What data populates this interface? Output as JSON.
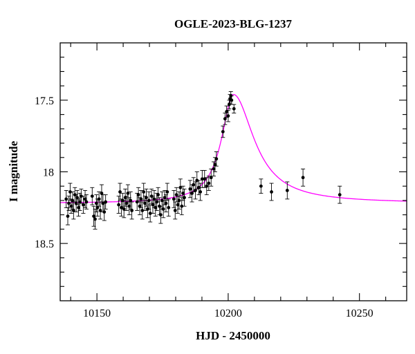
{
  "chart_data": {
    "type": "scatter",
    "title": "OGLE-2023-BLG-1237",
    "xlabel": "HJD - 2450000",
    "ylabel": "I magnitude",
    "xlim": [
      10136,
      10268
    ],
    "ylim": [
      18.9,
      17.1
    ],
    "y_inverted": true,
    "x_major_ticks": [
      10150,
      10200,
      10250
    ],
    "x_tick_labels": [
      "10150",
      "10200",
      "10250"
    ],
    "y_major_ticks": [
      17.5,
      18.0,
      18.5
    ],
    "y_tick_labels": [
      "17.5",
      "18",
      "18.5"
    ],
    "grid": false,
    "colors": {
      "points": "#000000",
      "model": "#ff00ff",
      "frame": "#000000"
    },
    "model": {
      "name": "microlensing model",
      "baseline_mag": 18.22,
      "peak_mag": 17.46,
      "t0": 10202,
      "rise_width": 5.5,
      "decline_width": 9.5
    },
    "series": [
      {
        "values": [
          {
            "x": 10138.3,
            "y": 18.19,
            "err": 0.06
          },
          {
            "x": 10138.9,
            "y": 18.31,
            "err": 0.06
          },
          {
            "x": 10139.3,
            "y": 18.22,
            "err": 0.05
          },
          {
            "x": 10139.8,
            "y": 18.14,
            "err": 0.06
          },
          {
            "x": 10140.2,
            "y": 18.24,
            "err": 0.05
          },
          {
            "x": 10140.7,
            "y": 18.2,
            "err": 0.06
          },
          {
            "x": 10141.1,
            "y": 18.27,
            "err": 0.06
          },
          {
            "x": 10141.6,
            "y": 18.16,
            "err": 0.05
          },
          {
            "x": 10142.1,
            "y": 18.22,
            "err": 0.06
          },
          {
            "x": 10142.5,
            "y": 18.18,
            "err": 0.05
          },
          {
            "x": 10143.0,
            "y": 18.25,
            "err": 0.06
          },
          {
            "x": 10143.5,
            "y": 18.21,
            "err": 0.06
          },
          {
            "x": 10144.0,
            "y": 18.17,
            "err": 0.05
          },
          {
            "x": 10144.8,
            "y": 18.23,
            "err": 0.06
          },
          {
            "x": 10145.5,
            "y": 18.19,
            "err": 0.06
          },
          {
            "x": 10146.0,
            "y": 18.21,
            "err": 0.05
          },
          {
            "x": 10148.2,
            "y": 18.17,
            "err": 0.06
          },
          {
            "x": 10148.8,
            "y": 18.31,
            "err": 0.07
          },
          {
            "x": 10149.3,
            "y": 18.33,
            "err": 0.07
          },
          {
            "x": 10149.8,
            "y": 18.22,
            "err": 0.06
          },
          {
            "x": 10150.2,
            "y": 18.25,
            "err": 0.06
          },
          {
            "x": 10150.8,
            "y": 18.19,
            "err": 0.05
          },
          {
            "x": 10151.3,
            "y": 18.27,
            "err": 0.06
          },
          {
            "x": 10151.8,
            "y": 18.15,
            "err": 0.06
          },
          {
            "x": 10152.3,
            "y": 18.22,
            "err": 0.06
          },
          {
            "x": 10152.8,
            "y": 18.28,
            "err": 0.06
          },
          {
            "x": 10153.3,
            "y": 18.21,
            "err": 0.05
          },
          {
            "x": 10158.3,
            "y": 18.23,
            "err": 0.06
          },
          {
            "x": 10158.8,
            "y": 18.14,
            "err": 0.06
          },
          {
            "x": 10159.3,
            "y": 18.25,
            "err": 0.06
          },
          {
            "x": 10159.8,
            "y": 18.2,
            "err": 0.05
          },
          {
            "x": 10160.3,
            "y": 18.26,
            "err": 0.06
          },
          {
            "x": 10160.8,
            "y": 18.18,
            "err": 0.06
          },
          {
            "x": 10161.3,
            "y": 18.22,
            "err": 0.05
          },
          {
            "x": 10161.8,
            "y": 18.15,
            "err": 0.06
          },
          {
            "x": 10162.3,
            "y": 18.24,
            "err": 0.06
          },
          {
            "x": 10162.8,
            "y": 18.2,
            "err": 0.06
          },
          {
            "x": 10163.3,
            "y": 18.27,
            "err": 0.06
          },
          {
            "x": 10165.3,
            "y": 18.21,
            "err": 0.06
          },
          {
            "x": 10165.8,
            "y": 18.16,
            "err": 0.05
          },
          {
            "x": 10166.3,
            "y": 18.24,
            "err": 0.06
          },
          {
            "x": 10166.8,
            "y": 18.19,
            "err": 0.06
          },
          {
            "x": 10167.3,
            "y": 18.27,
            "err": 0.06
          },
          {
            "x": 10167.8,
            "y": 18.14,
            "err": 0.06
          },
          {
            "x": 10168.3,
            "y": 18.22,
            "err": 0.05
          },
          {
            "x": 10168.8,
            "y": 18.18,
            "err": 0.06
          },
          {
            "x": 10169.3,
            "y": 18.26,
            "err": 0.06
          },
          {
            "x": 10169.8,
            "y": 18.2,
            "err": 0.06
          },
          {
            "x": 10170.3,
            "y": 18.29,
            "err": 0.06
          },
          {
            "x": 10170.8,
            "y": 18.17,
            "err": 0.05
          },
          {
            "x": 10171.3,
            "y": 18.23,
            "err": 0.06
          },
          {
            "x": 10171.8,
            "y": 18.19,
            "err": 0.06
          },
          {
            "x": 10172.3,
            "y": 18.25,
            "err": 0.06
          },
          {
            "x": 10172.8,
            "y": 18.21,
            "err": 0.06
          },
          {
            "x": 10173.3,
            "y": 18.16,
            "err": 0.05
          },
          {
            "x": 10173.8,
            "y": 18.24,
            "err": 0.06
          },
          {
            "x": 10174.3,
            "y": 18.3,
            "err": 0.06
          },
          {
            "x": 10174.8,
            "y": 18.2,
            "err": 0.06
          },
          {
            "x": 10175.3,
            "y": 18.26,
            "err": 0.06
          },
          {
            "x": 10175.8,
            "y": 18.18,
            "err": 0.05
          },
          {
            "x": 10176.3,
            "y": 18.22,
            "err": 0.06
          },
          {
            "x": 10176.8,
            "y": 18.14,
            "err": 0.06
          },
          {
            "x": 10177.3,
            "y": 18.25,
            "err": 0.06
          },
          {
            "x": 10179.3,
            "y": 18.19,
            "err": 0.06
          },
          {
            "x": 10179.8,
            "y": 18.27,
            "err": 0.06
          },
          {
            "x": 10180.3,
            "y": 18.16,
            "err": 0.05
          },
          {
            "x": 10180.8,
            "y": 18.23,
            "err": 0.06
          },
          {
            "x": 10181.3,
            "y": 18.2,
            "err": 0.06
          },
          {
            "x": 10181.8,
            "y": 18.11,
            "err": 0.06
          },
          {
            "x": 10182.3,
            "y": 18.24,
            "err": 0.06
          },
          {
            "x": 10182.8,
            "y": 18.15,
            "err": 0.05
          },
          {
            "x": 10183.3,
            "y": 18.18,
            "err": 0.06
          },
          {
            "x": 10185.5,
            "y": 18.12,
            "err": 0.06
          },
          {
            "x": 10186.2,
            "y": 18.15,
            "err": 0.06
          },
          {
            "x": 10186.8,
            "y": 18.09,
            "err": 0.05
          },
          {
            "x": 10187.5,
            "y": 18.13,
            "err": 0.06
          },
          {
            "x": 10188.1,
            "y": 18.06,
            "err": 0.06
          },
          {
            "x": 10188.8,
            "y": 18.11,
            "err": 0.05
          },
          {
            "x": 10189.4,
            "y": 18.14,
            "err": 0.06
          },
          {
            "x": 10190.1,
            "y": 18.05,
            "err": 0.06
          },
          {
            "x": 10191.0,
            "y": 18.05,
            "err": 0.06
          },
          {
            "x": 10191.8,
            "y": 18.1,
            "err": 0.06
          },
          {
            "x": 10192.6,
            "y": 18.08,
            "err": 0.05
          },
          {
            "x": 10193.5,
            "y": 18.04,
            "err": 0.06
          },
          {
            "x": 10194.5,
            "y": 17.98,
            "err": 0.05
          },
          {
            "x": 10195.0,
            "y": 17.95,
            "err": 0.05
          },
          {
            "x": 10195.5,
            "y": 17.91,
            "err": 0.05
          },
          {
            "x": 10198.0,
            "y": 17.72,
            "err": 0.04
          },
          {
            "x": 10198.8,
            "y": 17.63,
            "err": 0.04
          },
          {
            "x": 10199.4,
            "y": 17.58,
            "err": 0.04
          },
          {
            "x": 10200.0,
            "y": 17.61,
            "err": 0.04
          },
          {
            "x": 10200.4,
            "y": 17.53,
            "err": 0.03
          },
          {
            "x": 10200.7,
            "y": 17.49,
            "err": 0.03
          },
          {
            "x": 10201.0,
            "y": 17.47,
            "err": 0.03
          },
          {
            "x": 10201.3,
            "y": 17.5,
            "err": 0.03
          },
          {
            "x": 10202.2,
            "y": 17.56,
            "err": 0.03
          },
          {
            "x": 10212.5,
            "y": 18.1,
            "err": 0.05
          },
          {
            "x": 10216.5,
            "y": 18.14,
            "err": 0.06
          },
          {
            "x": 10222.5,
            "y": 18.13,
            "err": 0.06
          },
          {
            "x": 10228.5,
            "y": 18.04,
            "err": 0.06
          },
          {
            "x": 10242.5,
            "y": 18.16,
            "err": 0.06
          }
        ]
      }
    ]
  }
}
